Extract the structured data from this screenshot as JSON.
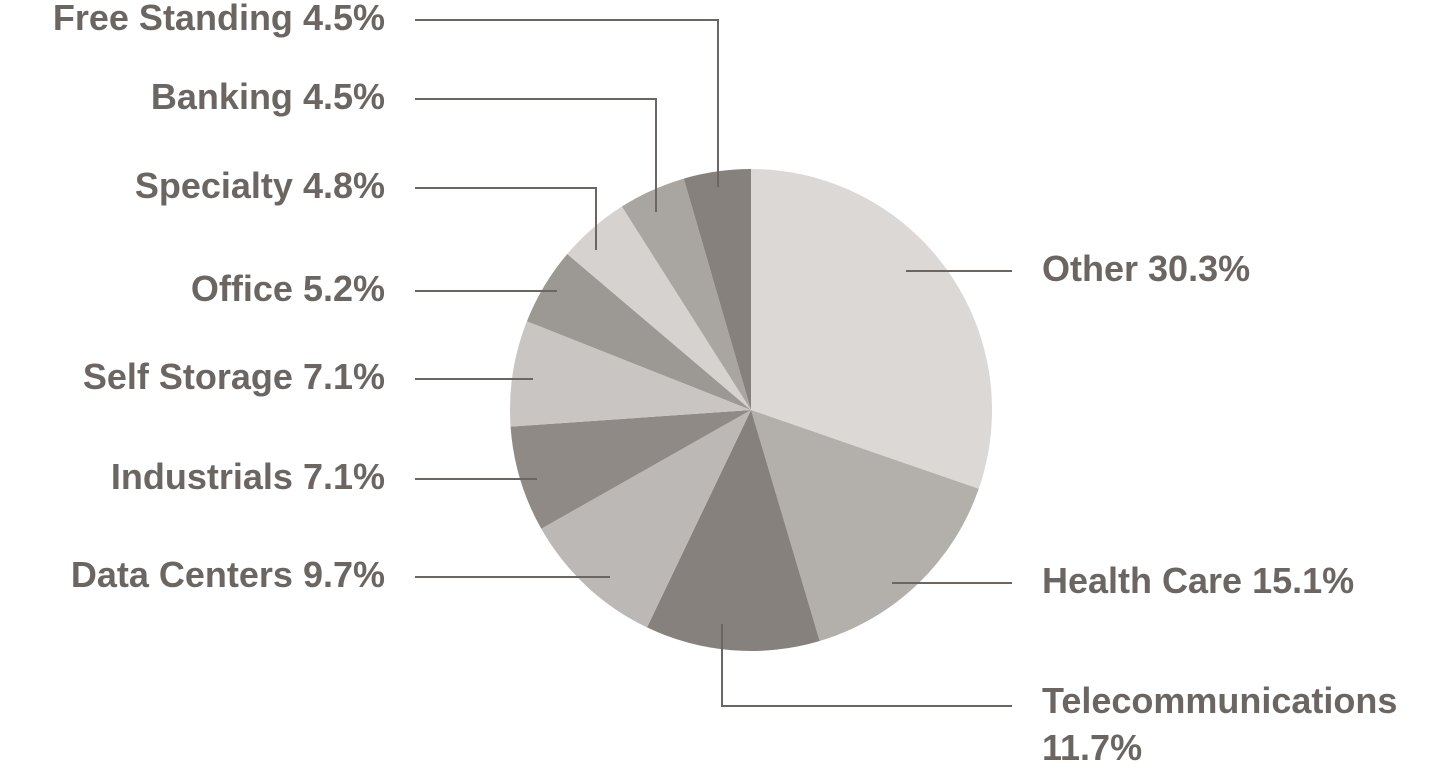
{
  "chart_data": {
    "type": "pie",
    "categories": [
      "Other",
      "Health Care",
      "Telecommunications",
      "Data Centers",
      "Industrials",
      "Self Storage",
      "Office",
      "Specialty",
      "Banking",
      "Free Standing"
    ],
    "values": [
      30.3,
      15.1,
      11.7,
      9.7,
      7.1,
      7.1,
      5.2,
      4.8,
      4.5,
      4.5
    ],
    "value_labels": [
      "30.3%",
      "15.1%",
      "11.7%",
      "9.7%",
      "7.1%",
      "7.1%",
      "5.2%",
      "4.8%",
      "4.5%",
      "4.5%"
    ],
    "colors": [
      "#dcd8d6",
      "#b3afab",
      "#86817c",
      "#bcb8b5",
      "#8f8a86",
      "#c9c5c3",
      "#9c9894",
      "#d6d2cf",
      "#a9a5a1",
      "#86817c"
    ]
  }
}
